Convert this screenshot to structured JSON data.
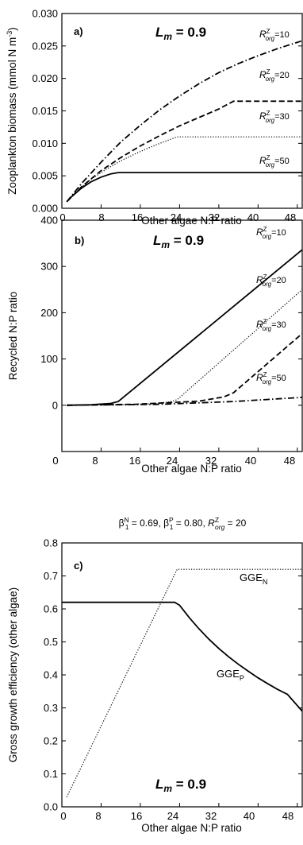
{
  "chart_data": [
    {
      "type": "line",
      "panel": "a)",
      "annotation": {
        "lhs": "L",
        "sub": "m",
        "rhs": " = 0.9"
      },
      "xlabel": "Other algae N:P ratio",
      "ylabel": "Zooplankton biomass (mmol N m",
      "ylabel_sup": "-3",
      "ylabel_tail": ")",
      "xlim": [
        0,
        49
      ],
      "ylim": [
        0,
        0.03
      ],
      "xticks": [
        0,
        8,
        16,
        24,
        32,
        40,
        48
      ],
      "yticks": [
        0.0,
        0.005,
        0.01,
        0.015,
        0.02,
        0.025,
        0.03
      ],
      "ytick_labels": [
        "0.000",
        "0.005",
        "0.010",
        "0.015",
        "0.020",
        "0.025",
        "0.030"
      ],
      "series": [
        {
          "label_main": "R",
          "label_sup": "Z",
          "label_sub": "org",
          "label_val": "=10",
          "dash": "solid",
          "x": [
            1,
            2,
            4,
            6,
            8,
            10,
            11.5,
            49
          ],
          "y": [
            0.001,
            0.0018,
            0.0031,
            0.0041,
            0.0048,
            0.0053,
            0.0055,
            0.0055
          ]
        },
        {
          "label_main": "R",
          "label_sup": "Z",
          "label_sub": "org",
          "label_val": "=20",
          "dash": "dot",
          "x": [
            1,
            3,
            6,
            9,
            12,
            15,
            18,
            21,
            23.5,
            49
          ],
          "y": [
            0.001,
            0.0026,
            0.0045,
            0.006,
            0.0073,
            0.0084,
            0.0094,
            0.0103,
            0.011,
            0.011
          ]
        },
        {
          "label_main": "R",
          "label_sup": "Z",
          "label_sub": "org",
          "label_val": "=30",
          "dash": "dash",
          "x": [
            1,
            4,
            8,
            12,
            16,
            20,
            24,
            28,
            32,
            35,
            49
          ],
          "y": [
            0.001,
            0.0033,
            0.0058,
            0.0078,
            0.0096,
            0.0112,
            0.0127,
            0.014,
            0.0153,
            0.0165,
            0.0165
          ]
        },
        {
          "label_main": "R",
          "label_sup": "Z",
          "label_sub": "org",
          "label_val": "=50",
          "dash": "dashdot",
          "x": [
            1,
            4,
            8,
            12,
            16,
            20,
            24,
            28,
            32,
            36,
            40,
            44,
            49
          ],
          "y": [
            0.001,
            0.0038,
            0.0071,
            0.0102,
            0.0128,
            0.0152,
            0.0173,
            0.0192,
            0.0209,
            0.0223,
            0.0235,
            0.0246,
            0.0258
          ]
        }
      ]
    },
    {
      "type": "line",
      "panel": "b)",
      "annotation": {
        "lhs": "L",
        "sub": "m",
        "rhs": " = 0.9"
      },
      "xlabel": "Other algae N:P ratio",
      "ylabel": "Recycled N:P ratio",
      "xlim": [
        0,
        49
      ],
      "ylim": [
        -100,
        400
      ],
      "xticks": [
        0,
        8,
        16,
        24,
        32,
        40,
        48
      ],
      "yticks": [
        0,
        100,
        200,
        300,
        400
      ],
      "ytick_labels": [
        "0",
        "100",
        "200",
        "300",
        "400"
      ],
      "series": [
        {
          "label_main": "R",
          "label_sup": "Z",
          "label_sub": "org",
          "label_val": "=10",
          "dash": "solid",
          "x": [
            1,
            6,
            10,
            11.5,
            49
          ],
          "y": [
            0,
            1,
            4,
            8,
            336
          ]
        },
        {
          "label_main": "R",
          "label_sup": "Z",
          "label_sub": "org",
          "label_val": "=20",
          "dash": "dot",
          "x": [
            1,
            10,
            18,
            22,
            23.5,
            49
          ],
          "y": [
            0,
            1,
            3,
            7,
            12,
            250
          ]
        },
        {
          "label_main": "R",
          "label_sup": "Z",
          "label_sub": "org",
          "label_val": "=30",
          "dash": "dash",
          "x": [
            1,
            15,
            28,
            33,
            35,
            49
          ],
          "y": [
            0,
            2,
            9,
            18,
            27,
            155
          ]
        },
        {
          "label_main": "R",
          "label_sup": "Z",
          "label_sub": "org",
          "label_val": "=50",
          "dash": "dashdot",
          "x": [
            1,
            20,
            35,
            49
          ],
          "y": [
            0,
            2,
            8,
            17
          ]
        }
      ]
    },
    {
      "type": "line",
      "panel": "c)",
      "title_parts": [
        "β",
        "N",
        "1",
        " = 0.69,  ",
        "β",
        "P",
        "1",
        " = 0.80,  ",
        "R",
        "Z",
        "org",
        " = 20"
      ],
      "annotation": {
        "lhs": "L",
        "sub": "m",
        "rhs": " = 0.9"
      },
      "xlabel": "Other algae N:P ratio",
      "ylabel": "Gross growth efficiency (other algae)",
      "xlim": [
        0,
        49
      ],
      "ylim": [
        0,
        0.8
      ],
      "xticks": [
        0,
        8,
        16,
        24,
        32,
        40,
        48
      ],
      "yticks": [
        0.0,
        0.1,
        0.2,
        0.3,
        0.4,
        0.5,
        0.6,
        0.7,
        0.8
      ],
      "ytick_labels": [
        "0.0",
        "0.1",
        "0.2",
        "0.3",
        "0.4",
        "0.5",
        "0.6",
        "0.7",
        "0.8"
      ],
      "series": [
        {
          "label_main": "GGE",
          "label_sub": "N",
          "dash": "solid",
          "x": [
            0,
            23,
            24,
            26,
            28,
            30,
            32,
            34,
            36,
            38,
            40,
            42,
            44,
            46,
            49
          ],
          "y": [
            0.62,
            0.62,
            0.611,
            0.573,
            0.539,
            0.508,
            0.48,
            0.455,
            0.432,
            0.411,
            0.391,
            0.373,
            0.356,
            0.341,
            0.29
          ]
        },
        {
          "label_main": "GGE",
          "label_sub": "P",
          "dash": "dot",
          "x": [
            1,
            23.5,
            49
          ],
          "y": [
            0.03,
            0.72,
            0.72
          ]
        }
      ]
    }
  ]
}
